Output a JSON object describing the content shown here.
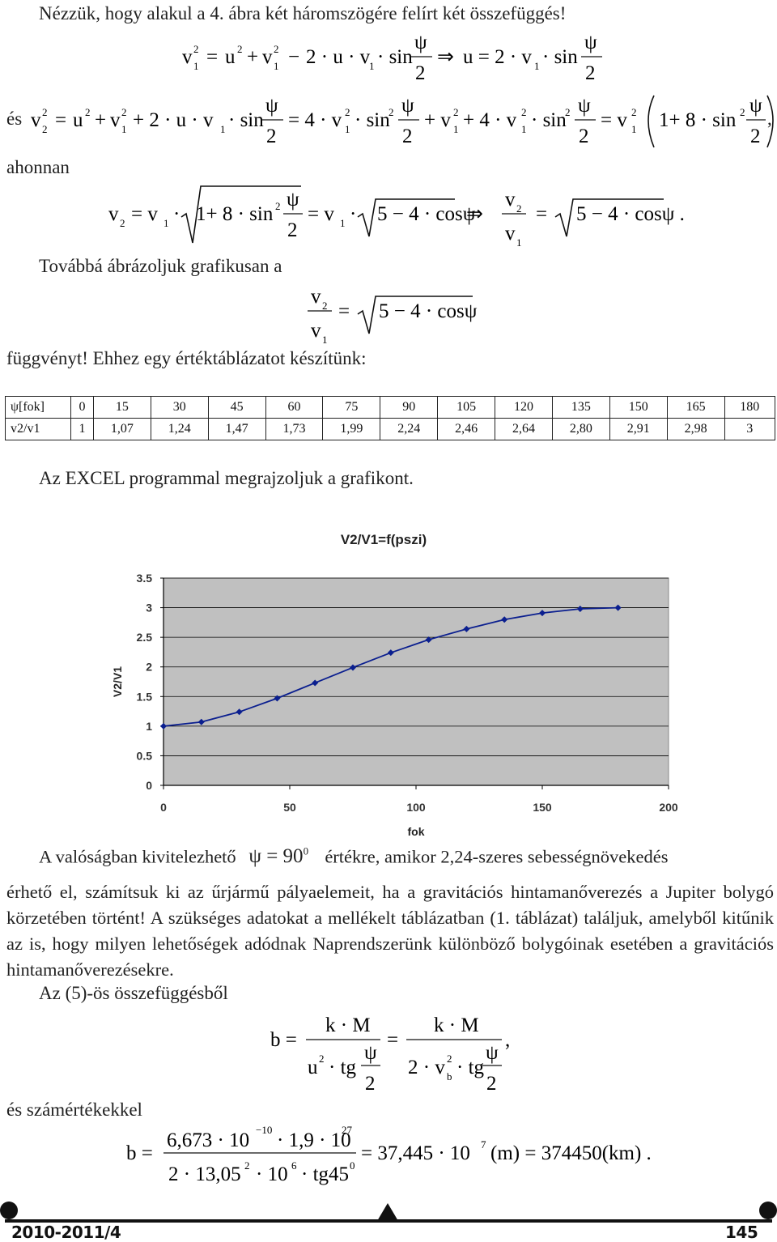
{
  "intro_line": "Nézzük, hogy alakul a 4. ábra két háromszögére felírt két összefüggés!",
  "es_label": "és",
  "ahonnan_label": "ahonnan",
  "tovabba_line": "Továbbá ábrázoljuk grafikusan a",
  "fuggvenyt_line": "függvényt! Ehhez egy értéktáblázatot készítünk:",
  "table": {
    "row1_header": "ψ[fok]",
    "row1": [
      "0",
      "15",
      "30",
      "45",
      "60",
      "75",
      "90",
      "105",
      "120",
      "135",
      "150",
      "165",
      "180"
    ],
    "row2_header": "v2/v1",
    "row2": [
      "1",
      "1,07",
      "1,24",
      "1,47",
      "1,73",
      "1,99",
      "2,24",
      "2,46",
      "2,64",
      "2,80",
      "2,91",
      "2,98",
      "3"
    ]
  },
  "excel_line": "Az EXCEL programmal megrajzoljuk a grafikont.",
  "chart_data": {
    "type": "line",
    "title": "V2/V1=f(pszi)",
    "xlabel": "fok",
    "ylabel": "V2/V1",
    "xlim": [
      0,
      200
    ],
    "ylim": [
      0,
      3.5
    ],
    "x_ticks": [
      "0",
      "50",
      "100",
      "150",
      "200"
    ],
    "y_ticks": [
      "0",
      "0.5",
      "1",
      "1.5",
      "2",
      "2.5",
      "3",
      "3.5"
    ],
    "grid": "horizontal",
    "legend": "none",
    "series": [
      {
        "x": [
          0,
          15,
          30,
          45,
          60,
          75,
          90,
          105,
          120,
          135,
          150,
          165,
          180
        ],
        "y": [
          1,
          1.07,
          1.24,
          1.47,
          1.73,
          1.99,
          2.24,
          2.46,
          2.64,
          2.8,
          2.91,
          2.98,
          3.0
        ],
        "color": "#0b1f8f"
      }
    ],
    "plot_bg": "#c0c0c0"
  },
  "para1_pre": "A valóságban kivitelezhető",
  "para1_math": "ψ = 90",
  "para1_sup": "0",
  "para1_post": "értékre, amikor 2,24-szeres sebességnövekedés",
  "para1_rest": "érhető el, számítsuk ki az űrjármű pályaelemeit, ha a gravitációs hintamanőverezés a Jupiter bolygó körzetében történt! A szükséges adatokat a mellékelt táblázatban (1. táblázat) találjuk, amelyből kitűnik az is, hogy milyen lehetőségek adódnak Naprendszerünk különböző bolygóinak esetében a gravitációs hintamanőverezésekre.",
  "para2": "Az (5)-ös összefüggésből",
  "szamertekek_line": "és számértékekkel",
  "footer": {
    "left": "2010-2011/4",
    "right": "145"
  }
}
